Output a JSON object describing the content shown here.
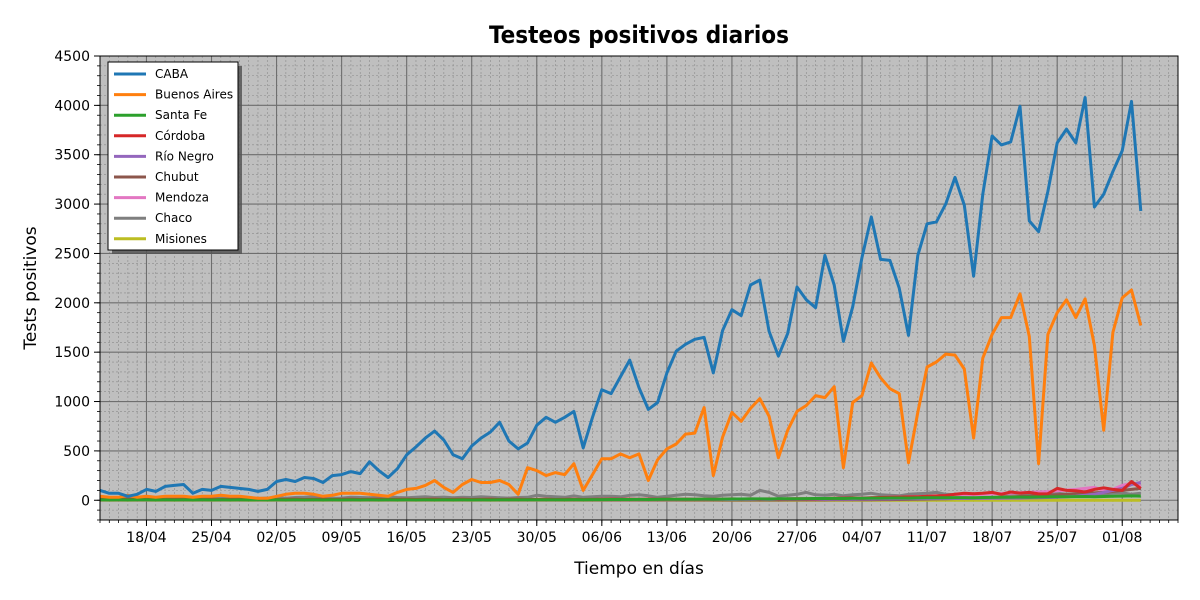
{
  "chart_data": {
    "type": "line",
    "title": "Testeos positivos diarios",
    "xlabel": "Tiempo en días",
    "ylabel": "Tests positivos",
    "ylim": [
      -200,
      4500
    ],
    "y_ticks": [
      0,
      500,
      1000,
      1500,
      2000,
      2500,
      3000,
      3500,
      4000,
      4500
    ],
    "x_start": "2020-04-13",
    "x_end": "2020-08-07",
    "x_ticks": [
      {
        "date": "2020-04-18",
        "label": "18/04"
      },
      {
        "date": "2020-04-25",
        "label": "25/04"
      },
      {
        "date": "2020-05-02",
        "label": "02/05"
      },
      {
        "date": "2020-05-09",
        "label": "09/05"
      },
      {
        "date": "2020-05-16",
        "label": "16/05"
      },
      {
        "date": "2020-05-23",
        "label": "23/05"
      },
      {
        "date": "2020-05-30",
        "label": "30/05"
      },
      {
        "date": "2020-06-06",
        "label": "06/06"
      },
      {
        "date": "2020-06-13",
        "label": "13/06"
      },
      {
        "date": "2020-06-20",
        "label": "20/06"
      },
      {
        "date": "2020-06-27",
        "label": "27/06"
      },
      {
        "date": "2020-07-04",
        "label": "04/07"
      },
      {
        "date": "2020-07-11",
        "label": "11/07"
      },
      {
        "date": "2020-07-18",
        "label": "18/07"
      },
      {
        "date": "2020-07-25",
        "label": "25/07"
      },
      {
        "date": "2020-08-01",
        "label": "01/08"
      }
    ],
    "grid": true,
    "legend_position": "top-left",
    "background_color": "#bfbfbf",
    "series": [
      {
        "name": "CABA",
        "color": "#1f77b4",
        "values": [
          100,
          70,
          70,
          40,
          60,
          110,
          90,
          140,
          150,
          160,
          70,
          110,
          100,
          140,
          130,
          120,
          110,
          90,
          110,
          190,
          210,
          190,
          230,
          220,
          180,
          250,
          260,
          290,
          270,
          390,
          300,
          230,
          320,
          460,
          540,
          630,
          700,
          610,
          460,
          420,
          550,
          630,
          690,
          790,
          600,
          520,
          580,
          760,
          840,
          790,
          840,
          900,
          530,
          840,
          1120,
          1080,
          1250,
          1420,
          1140,
          920,
          990,
          1290,
          1510,
          1580,
          1630,
          1650,
          1290,
          1720,
          1930,
          1870,
          2180,
          2230,
          1710,
          1460,
          1690,
          2160,
          2030,
          1950,
          2480,
          2180,
          1610,
          1960,
          2460,
          2870,
          2440,
          2430,
          2150,
          1670,
          2480,
          2800,
          2820,
          3000,
          3270,
          2990,
          2270,
          3100,
          3690,
          3600,
          3630,
          3990,
          2830,
          2720,
          3130,
          3620,
          3760,
          3620,
          4080,
          2970,
          3100,
          3330,
          3540,
          4040,
          2930
        ]
      },
      {
        "name": "Buenos Aires",
        "color": "#ff7f0e",
        "values": [
          40,
          30,
          30,
          50,
          30,
          40,
          30,
          40,
          40,
          40,
          30,
          40,
          40,
          50,
          40,
          40,
          30,
          20,
          20,
          40,
          60,
          70,
          70,
          60,
          40,
          50,
          70,
          70,
          70,
          60,
          50,
          40,
          80,
          110,
          120,
          150,
          200,
          130,
          80,
          160,
          210,
          180,
          180,
          200,
          160,
          60,
          330,
          300,
          250,
          280,
          260,
          370,
          100,
          260,
          420,
          420,
          470,
          430,
          470,
          200,
          410,
          520,
          570,
          670,
          680,
          940,
          250,
          640,
          890,
          800,
          930,
          1030,
          850,
          430,
          710,
          900,
          960,
          1060,
          1040,
          1150,
          330,
          990,
          1060,
          1390,
          1240,
          1130,
          1080,
          380,
          890,
          1350,
          1400,
          1480,
          1470,
          1330,
          630,
          1440,
          1680,
          1850,
          1850,
          2090,
          1660,
          370,
          1680,
          1900,
          2030,
          1850,
          2040,
          1570,
          710,
          1700,
          2050,
          2130,
          1770
        ]
      },
      {
        "name": "Santa Fe",
        "color": "#2ca02c",
        "values": [
          5,
          4,
          5,
          4,
          5,
          5,
          4,
          5,
          4,
          5,
          4,
          5,
          4,
          5,
          4,
          5,
          4,
          5,
          4,
          5,
          4,
          5,
          4,
          5,
          4,
          5,
          4,
          5,
          4,
          5,
          4,
          5,
          4,
          5,
          4,
          5,
          4,
          5,
          4,
          5,
          4,
          5,
          4,
          5,
          5,
          5,
          5,
          6,
          6,
          6,
          6,
          7,
          6,
          7,
          7,
          8,
          8,
          8,
          9,
          8,
          9,
          10,
          10,
          11,
          11,
          12,
          11,
          12,
          13,
          13,
          14,
          14,
          13,
          15,
          16,
          16,
          17,
          18,
          18,
          19,
          18,
          20,
          21,
          22,
          22,
          23,
          23,
          22,
          24,
          25,
          25,
          26,
          27,
          27,
          26,
          28,
          29,
          30,
          31,
          32,
          30,
          33,
          34,
          35,
          36,
          37,
          38,
          36,
          38,
          40,
          42,
          44,
          42
        ]
      },
      {
        "name": "Córdoba",
        "color": "#d62728",
        "values": [
          10,
          8,
          9,
          10,
          8,
          9,
          10,
          8,
          9,
          10,
          8,
          9,
          10,
          8,
          9,
          10,
          8,
          9,
          10,
          8,
          9,
          10,
          8,
          9,
          10,
          8,
          9,
          10,
          8,
          9,
          10,
          8,
          9,
          10,
          8,
          9,
          10,
          8,
          9,
          10,
          8,
          9,
          10,
          8,
          9,
          10,
          8,
          9,
          10,
          8,
          9,
          10,
          8,
          9,
          10,
          12,
          10,
          12,
          10,
          12,
          10,
          12,
          10,
          12,
          10,
          12,
          10,
          12,
          14,
          12,
          14,
          12,
          14,
          12,
          14,
          16,
          14,
          16,
          18,
          20,
          22,
          24,
          20,
          26,
          28,
          30,
          32,
          34,
          36,
          40,
          44,
          48,
          60,
          70,
          66,
          70,
          80,
          60,
          84,
          72,
          80,
          64,
          66,
          120,
          100,
          96,
          84,
          110,
          126,
          110,
          100,
          190,
          120
        ]
      },
      {
        "name": "Río Negro",
        "color": "#9467bd",
        "values": [
          4,
          4,
          4,
          4,
          4,
          4,
          4,
          4,
          4,
          4,
          4,
          4,
          4,
          4,
          4,
          4,
          4,
          4,
          4,
          4,
          4,
          4,
          4,
          4,
          4,
          4,
          4,
          4,
          4,
          4,
          4,
          4,
          4,
          4,
          4,
          4,
          4,
          4,
          4,
          4,
          4,
          4,
          4,
          4,
          4,
          4,
          4,
          4,
          4,
          4,
          5,
          5,
          5,
          5,
          5,
          5,
          5,
          5,
          6,
          6,
          6,
          6,
          6,
          7,
          7,
          7,
          7,
          8,
          8,
          8,
          8,
          9,
          9,
          9,
          10,
          10,
          10,
          11,
          11,
          12,
          12,
          12,
          13,
          13,
          14,
          14,
          15,
          15,
          16,
          16,
          17,
          17,
          18,
          18,
          19,
          19,
          20,
          20,
          22,
          22,
          24,
          26,
          28,
          30,
          35,
          40,
          50,
          60,
          80,
          100,
          120,
          160,
          180
        ]
      },
      {
        "name": "Chubut",
        "color": "#8c564b",
        "values": [
          3,
          3,
          3,
          3,
          3,
          3,
          3,
          3,
          3,
          3,
          3,
          3,
          3,
          3,
          3,
          3,
          3,
          3,
          3,
          3,
          3,
          3,
          3,
          3,
          3,
          3,
          3,
          3,
          3,
          3,
          3,
          3,
          3,
          3,
          3,
          3,
          3,
          3,
          3,
          3,
          3,
          3,
          3,
          3,
          3,
          3,
          3,
          3,
          3,
          3,
          3,
          3,
          3,
          3,
          3,
          3,
          3,
          3,
          3,
          3,
          3,
          3,
          3,
          3,
          3,
          3,
          3,
          3,
          3,
          3,
          3,
          3,
          3,
          3,
          4,
          4,
          4,
          4,
          4,
          5,
          5,
          5,
          6,
          6,
          7,
          7,
          8,
          9,
          10,
          12,
          14,
          16,
          18,
          20,
          22,
          25,
          28,
          30,
          34,
          38,
          42,
          46,
          50,
          55,
          60,
          65,
          70,
          75,
          80,
          90,
          100,
          110,
          120
        ]
      },
      {
        "name": "Mendoza",
        "color": "#e377c2",
        "values": [
          3,
          3,
          3,
          3,
          3,
          3,
          3,
          3,
          3,
          3,
          3,
          3,
          3,
          3,
          3,
          3,
          3,
          3,
          3,
          3,
          3,
          3,
          3,
          3,
          3,
          3,
          3,
          3,
          3,
          3,
          3,
          3,
          3,
          3,
          3,
          3,
          3,
          3,
          3,
          3,
          3,
          3,
          3,
          3,
          3,
          3,
          3,
          3,
          3,
          3,
          3,
          3,
          3,
          3,
          3,
          4,
          4,
          4,
          4,
          4,
          5,
          5,
          5,
          6,
          6,
          7,
          7,
          8,
          8,
          9,
          10,
          10,
          11,
          12,
          13,
          14,
          15,
          16,
          18,
          19,
          20,
          22,
          24,
          26,
          28,
          30,
          32,
          34,
          36,
          38,
          40,
          44,
          48,
          52,
          56,
          60,
          64,
          68,
          72,
          76,
          80,
          84,
          88,
          96,
          104,
          110,
          120,
          130,
          100,
          110,
          150,
          170,
          140
        ]
      },
      {
        "name": "Chaco",
        "color": "#7f7f7f",
        "values": [
          20,
          25,
          18,
          22,
          30,
          15,
          20,
          25,
          22,
          18,
          30,
          25,
          20,
          22,
          28,
          24,
          20,
          18,
          22,
          25,
          20,
          28,
          30,
          35,
          25,
          20,
          22,
          30,
          28,
          25,
          30,
          35,
          28,
          25,
          30,
          35,
          28,
          32,
          25,
          30,
          28,
          35,
          30,
          25,
          22,
          28,
          30,
          50,
          40,
          35,
          30,
          45,
          30,
          35,
          40,
          40,
          35,
          50,
          55,
          45,
          30,
          40,
          50,
          60,
          55,
          45,
          40,
          50,
          55,
          60,
          50,
          100,
          80,
          40,
          50,
          60,
          80,
          55,
          50,
          60,
          45,
          55,
          60,
          70,
          55,
          50,
          45,
          60,
          65,
          70,
          80,
          60,
          55,
          60,
          55,
          70,
          75,
          60,
          65,
          70,
          55,
          60,
          65,
          70,
          60,
          65,
          70,
          60,
          65,
          70,
          75,
          60,
          70
        ]
      },
      {
        "name": "Misiones",
        "color": "#bcbd22",
        "values": [
          1,
          1,
          1,
          1,
          1,
          1,
          1,
          1,
          1,
          1,
          1,
          1,
          1,
          1,
          1,
          1,
          1,
          1,
          1,
          1,
          1,
          1,
          1,
          1,
          1,
          1,
          1,
          1,
          1,
          1,
          1,
          1,
          1,
          1,
          1,
          1,
          1,
          1,
          1,
          1,
          1,
          1,
          1,
          1,
          1,
          1,
          1,
          1,
          1,
          1,
          1,
          1,
          1,
          1,
          1,
          1,
          1,
          1,
          1,
          1,
          1,
          1,
          1,
          1,
          1,
          1,
          1,
          1,
          1,
          1,
          1,
          1,
          1,
          1,
          1,
          1,
          1,
          1,
          1,
          1,
          1,
          1,
          1,
          1,
          1,
          1,
          1,
          1,
          1,
          1,
          1,
          1,
          1,
          1,
          1,
          1,
          1,
          1,
          1,
          1,
          1,
          1,
          1,
          1,
          1,
          1,
          1,
          1,
          1,
          1,
          1,
          1,
          1
        ]
      }
    ]
  }
}
